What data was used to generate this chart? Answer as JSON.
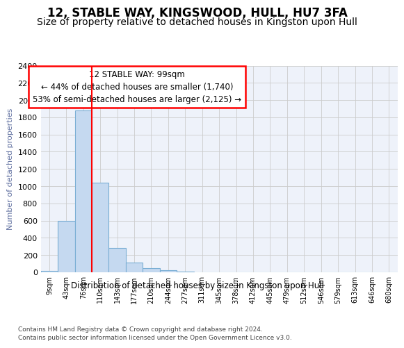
{
  "title": "12, STABLE WAY, KINGSWOOD, HULL, HU7 3FA",
  "subtitle": "Size of property relative to detached houses in Kingston upon Hull",
  "xlabel_bottom": "Distribution of detached houses by size in Kingston upon Hull",
  "ylabel": "Number of detached properties",
  "footer_line1": "Contains HM Land Registry data © Crown copyright and database right 2024.",
  "footer_line2": "Contains public sector information licensed under the Open Government Licence v3.0.",
  "bar_labels": [
    "9sqm",
    "43sqm",
    "76sqm",
    "110sqm",
    "143sqm",
    "177sqm",
    "210sqm",
    "244sqm",
    "277sqm",
    "311sqm",
    "345sqm",
    "378sqm",
    "412sqm",
    "445sqm",
    "479sqm",
    "512sqm",
    "546sqm",
    "579sqm",
    "613sqm",
    "646sqm",
    "680sqm"
  ],
  "bar_values": [
    20,
    600,
    1880,
    1040,
    280,
    115,
    50,
    25,
    5,
    2,
    1,
    0,
    0,
    0,
    0,
    0,
    0,
    0,
    0,
    0,
    0
  ],
  "bar_color": "#c5d9f0",
  "bar_edge_color": "#7aaed4",
  "vline_x": 3,
  "vline_color": "red",
  "annotation_text": "12 STABLE WAY: 99sqm\n← 44% of detached houses are smaller (1,740)\n53% of semi-detached houses are larger (2,125) →",
  "annotation_box_color": "white",
  "annotation_box_edge_color": "red",
  "ylim": [
    0,
    2400
  ],
  "yticks": [
    0,
    200,
    400,
    600,
    800,
    1000,
    1200,
    1400,
    1600,
    1800,
    2000,
    2200,
    2400
  ],
  "grid_color": "#cccccc",
  "bg_color": "#eef2fa",
  "title_fontsize": 12,
  "subtitle_fontsize": 10,
  "ylabel_color": "#6070a0"
}
